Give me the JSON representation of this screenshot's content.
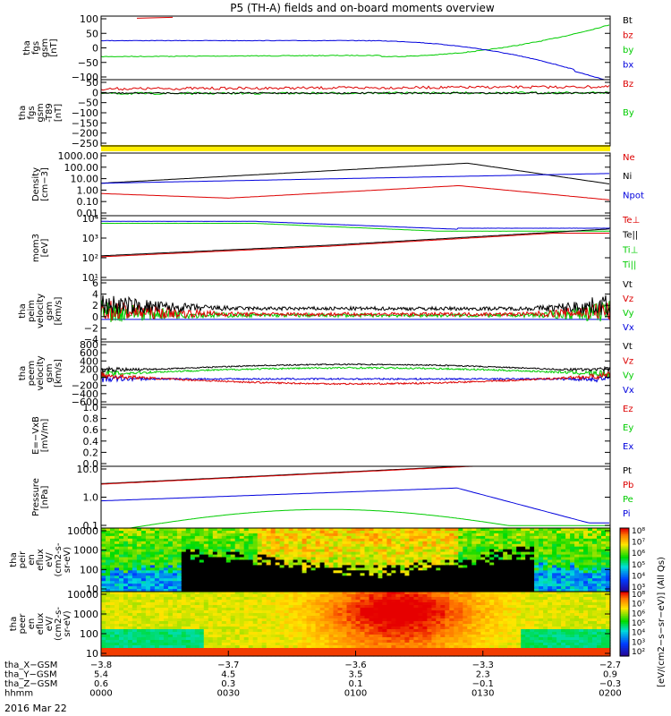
{
  "page": {
    "title": "P5 (TH-A) fields and on-board moments overview",
    "date": "2016 Mar 22"
  },
  "colors": {
    "black": "#000000",
    "red": "#dd0000",
    "green": "#00cc00",
    "blue": "#0000dd",
    "yellow": "#ffee00"
  },
  "panels": [
    {
      "id": "fgs",
      "ylabel": [
        "tha",
        "fgs",
        "gsm",
        "[nT]"
      ],
      "yticks": [
        "100",
        "50",
        "0",
        "−50",
        "−100"
      ],
      "yrange": [
        -100,
        100
      ],
      "legend": [
        {
          "text": "Bt",
          "color": "#000000"
        },
        {
          "text": "bz",
          "color": "#dd0000"
        },
        {
          "text": "by",
          "color": "#00cc00"
        },
        {
          "text": "bx",
          "color": "#0000dd"
        }
      ]
    },
    {
      "id": "fgs-dsl",
      "ylabel": [
        "tha",
        "fgs",
        "gsm",
        "-T89",
        "[nT]"
      ],
      "yticks": [
        "50",
        "0",
        "−50",
        "−100",
        "−150",
        "−200",
        "−250"
      ],
      "yrange": [
        -280,
        60
      ],
      "legend": [
        {
          "text": "Bz",
          "color": "#dd0000"
        },
        {
          "text": "By",
          "color": "#00cc00"
        }
      ]
    },
    {
      "id": "density",
      "ylabel": [
        "Density",
        "[cm−3]"
      ],
      "yticks": [
        "1000.00",
        "100.00",
        "10.00",
        "1.00",
        "0.10",
        "0.01"
      ],
      "legend": [
        {
          "text": "Ne",
          "color": "#dd0000"
        },
        {
          "text": "Ni",
          "color": "#000000"
        },
        {
          "text": "Npot",
          "color": "#0000dd"
        }
      ]
    },
    {
      "id": "temp",
      "ylabel": [
        "mom3",
        "[eV]"
      ],
      "yticks": [
        "10⁴",
        "10³",
        "10²",
        "10¹"
      ],
      "legend": [
        {
          "text": "Te⊥",
          "color": "#dd0000"
        },
        {
          "text": "Te||",
          "color": "#000000"
        },
        {
          "text": "Ti⊥",
          "color": "#00cc00"
        },
        {
          "text": "Ti||",
          "color": "#00cc00"
        }
      ]
    },
    {
      "id": "peim-vel",
      "ylabel": [
        "tha",
        "peim",
        "velocity",
        "gsm",
        "[km/s]"
      ],
      "yticks": [
        "6",
        "4",
        "2",
        "0",
        "−2",
        "−4"
      ],
      "legend": [
        {
          "text": "Vt",
          "color": "#000000"
        },
        {
          "text": "Vz",
          "color": "#dd0000"
        },
        {
          "text": "Vy",
          "color": "#00cc00"
        },
        {
          "text": "Vx",
          "color": "#0000dd"
        }
      ]
    },
    {
      "id": "peem-vel",
      "ylabel": [
        "tha",
        "peem",
        "velocity",
        "gsm",
        "[km/s]"
      ],
      "yticks": [
        "800",
        "600",
        "400",
        "200",
        "0",
        "−200",
        "−400",
        "−600"
      ],
      "legend": [
        {
          "text": "Vt",
          "color": "#000000"
        },
        {
          "text": "Vz",
          "color": "#dd0000"
        },
        {
          "text": "Vy",
          "color": "#00cc00"
        },
        {
          "text": "Vx",
          "color": "#0000dd"
        }
      ]
    },
    {
      "id": "efield",
      "ylabel": [
        "E=−VxB",
        "[mV/m]"
      ],
      "yticks": [
        "1.0",
        "0.8",
        "0.6",
        "0.4",
        "0.2",
        "0.0"
      ],
      "legend": [
        {
          "text": "Ez",
          "color": "#dd0000"
        },
        {
          "text": "Ey",
          "color": "#00cc00"
        },
        {
          "text": "Ex",
          "color": "#0000dd"
        }
      ]
    },
    {
      "id": "pressure",
      "ylabel": [
        "Pressure",
        "[nPa]"
      ],
      "yticks": [
        "10.0",
        "1.0",
        "0.1"
      ],
      "legend": [
        {
          "text": "Pt",
          "color": "#000000"
        },
        {
          "text": "Pb",
          "color": "#dd0000"
        },
        {
          "text": "Pe",
          "color": "#00cc00"
        },
        {
          "text": "Pi",
          "color": "#0000dd"
        }
      ]
    },
    {
      "id": "peir",
      "ylabel": [
        "tha",
        "peir",
        "en",
        "eflux",
        "eV/",
        "(cm2-s-",
        "sr-eV)"
      ],
      "yticks": [
        "10000",
        "1000",
        "100",
        "10"
      ]
    },
    {
      "id": "peer",
      "ylabel": [
        "tha",
        "peer",
        "en",
        "eflux",
        "eV/",
        "(cm2-s-",
        "sr-eV)"
      ],
      "yticks": [
        "10000",
        "1000",
        "100",
        "10"
      ]
    }
  ],
  "colorbar": {
    "label": "[eV/(cm2−s−sr−eV)] (All Qs)",
    "ticks_top": [
      "10⁸",
      "10⁷",
      "10⁶",
      "10⁵",
      "10⁴",
      "10³"
    ],
    "ticks_bottom": [
      "10⁸",
      "10⁷",
      "10⁶",
      "10⁵",
      "10⁴",
      "10³",
      "10²"
    ]
  },
  "xaxis": {
    "rows": [
      {
        "label": "tha_X−GSM",
        "values": [
          "−3.8",
          "−3.7",
          "−3.6",
          "−3.3",
          "−2.7"
        ]
      },
      {
        "label": "tha_Y−GSM",
        "values": [
          "5.4",
          "4.5",
          "3.5",
          "2.3",
          "0.9"
        ]
      },
      {
        "label": "tha_Z−GSM",
        "values": [
          "0.6",
          "0.3",
          "0.1",
          "−0.1",
          "−0.3"
        ]
      },
      {
        "label": "hhmm",
        "values": [
          "0000",
          "0030",
          "0100",
          "0130",
          "0200"
        ]
      }
    ]
  },
  "chart_data": {
    "type": "line",
    "title": "P5 (TH-A) fields and on-board moments overview",
    "x": [
      "0000",
      "0030",
      "0100",
      "0130",
      "0200"
    ],
    "series": [
      {
        "name": "bz",
        "values": [
          105,
          110,
          115,
          120,
          125
        ]
      },
      {
        "name": "by",
        "values": [
          -30,
          -28,
          -22,
          10,
          75
        ]
      },
      {
        "name": "bx",
        "values": [
          25,
          25,
          22,
          5,
          -110
        ]
      },
      {
        "name": "Ni",
        "values": [
          4,
          30,
          150,
          200,
          2
        ]
      },
      {
        "name": "Npot",
        "values": [
          4,
          5,
          8,
          12,
          20
        ]
      },
      {
        "name": "Ne",
        "values": [
          0.5,
          0.3,
          0.8,
          1.5,
          0.1
        ]
      },
      {
        "name": "Pb",
        "values": [
          2.5,
          5,
          10,
          20,
          25
        ]
      },
      {
        "name": "Pi",
        "values": [
          0.5,
          0.8,
          1.5,
          5,
          0.05
        ]
      },
      {
        "name": "Pe",
        "values": [
          0.02,
          0.05,
          0.1,
          0.2,
          0.05
        ]
      }
    ]
  }
}
